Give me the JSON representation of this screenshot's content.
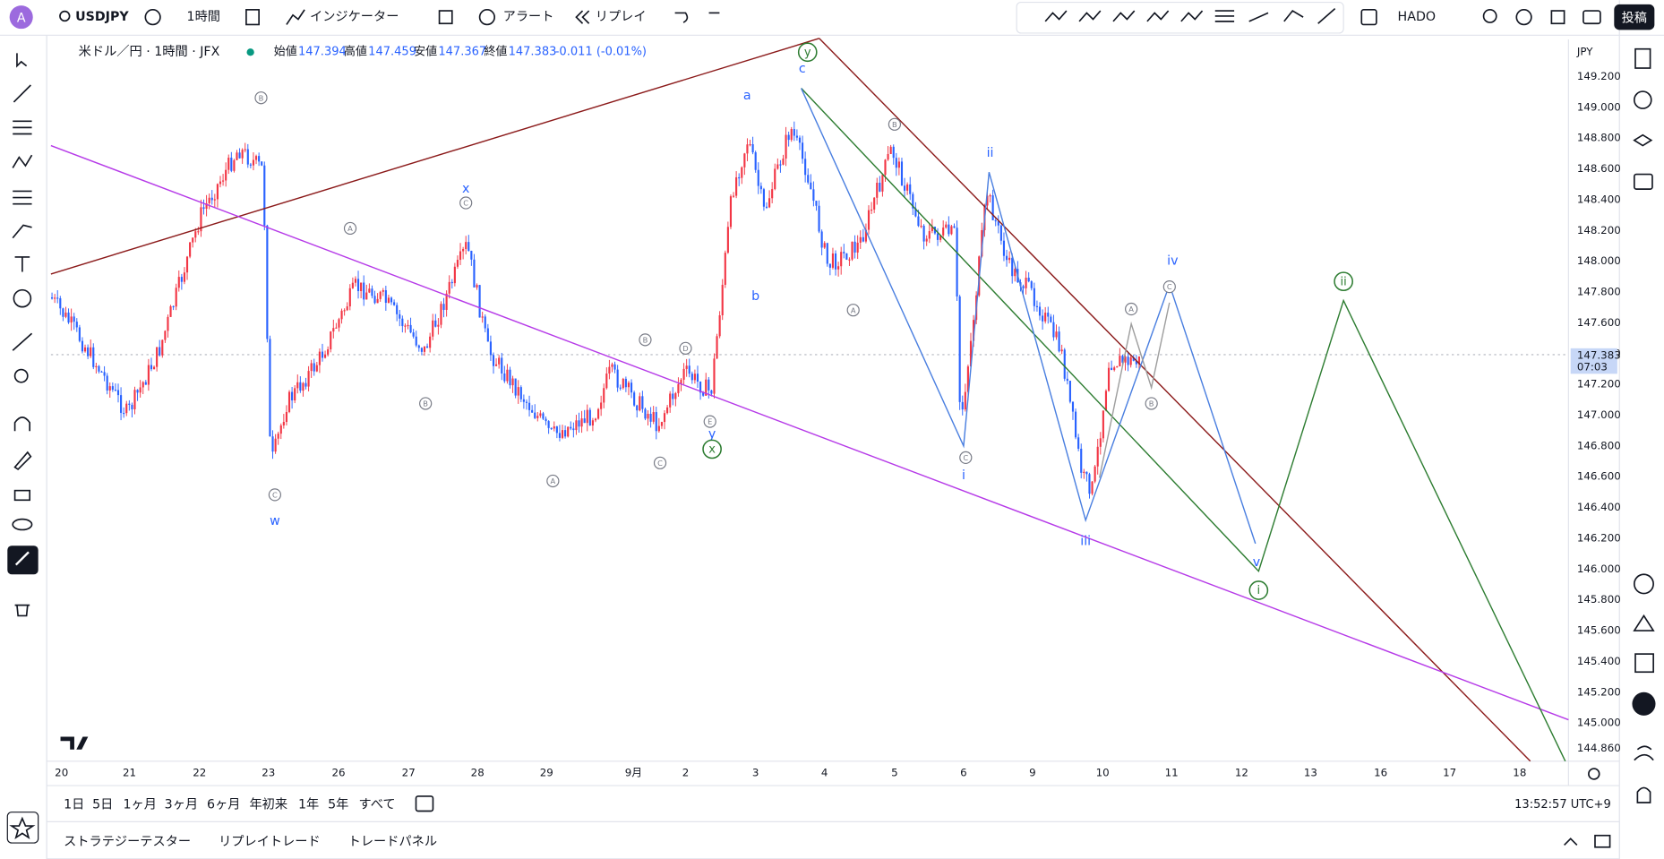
{
  "toolbar": {
    "avatar": "A",
    "symbol": "USDJPY",
    "interval": "1時間",
    "indicators": "インジケーター",
    "alert": "アラート",
    "replay": "リプレイ",
    "layout": "HADO",
    "publish": "投稿"
  },
  "legend": {
    "title": "米ドル／円 · 1時間 · JFX",
    "open_label": "始値",
    "open": "147.394",
    "high_label": "高値",
    "high": "147.459",
    "low_label": "安値",
    "low": "147.367",
    "close_label": "終値",
    "close": "147.383",
    "change": "-0.011 (-0.01%)"
  },
  "price_axis": {
    "currency": "JPY",
    "ticks": [
      "149.200",
      "149.000",
      "148.800",
      "148.600",
      "148.400",
      "148.200",
      "148.000",
      "147.800",
      "147.600",
      "147.400",
      "147.200",
      "147.000",
      "146.800",
      "146.600",
      "146.400",
      "146.200",
      "146.000",
      "145.800",
      "145.600",
      "145.400",
      "145.200",
      "145.000",
      "144.860"
    ],
    "last_price": "147.383",
    "countdown": "07:03"
  },
  "time_axis": {
    "labels": [
      "20",
      "21",
      "22",
      "23",
      "26",
      "27",
      "28",
      "29",
      "9月",
      "2",
      "3",
      "4",
      "5",
      "6",
      "9",
      "10",
      "11",
      "12",
      "13",
      "16",
      "17",
      "18"
    ]
  },
  "waves": {
    "blue": [
      "a",
      "b",
      "c",
      "w",
      "x",
      "y",
      "i",
      "ii",
      "iii",
      "iv",
      "v"
    ],
    "gray": [
      "B",
      "A",
      "C",
      "B",
      "B",
      "D",
      "E",
      "A",
      "C",
      "C",
      "A",
      "B",
      "C",
      "A",
      "C",
      "B"
    ],
    "green": [
      "y",
      "x",
      "i",
      "ii"
    ]
  },
  "ranges": [
    "1日",
    "5日",
    "1ヶ月",
    "3ヶ月",
    "6ヶ月",
    "年初来",
    "1年",
    "5年",
    "すべて"
  ],
  "clock": "13:52:57 UTC+9",
  "bottom_tabs": [
    "ストラテジーテスター",
    "リプレイトレード",
    "トレードパネル"
  ]
}
